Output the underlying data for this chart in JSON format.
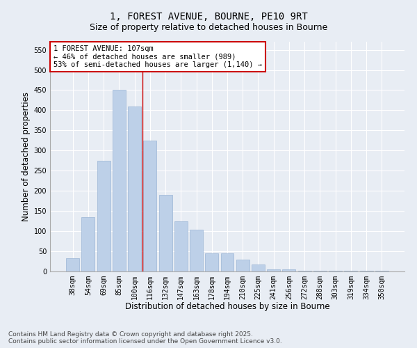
{
  "title": "1, FOREST AVENUE, BOURNE, PE10 9RT",
  "subtitle": "Size of property relative to detached houses in Bourne",
  "xlabel": "Distribution of detached houses by size in Bourne",
  "ylabel": "Number of detached properties",
  "categories": [
    "38sqm",
    "54sqm",
    "69sqm",
    "85sqm",
    "100sqm",
    "116sqm",
    "132sqm",
    "147sqm",
    "163sqm",
    "178sqm",
    "194sqm",
    "210sqm",
    "225sqm",
    "241sqm",
    "256sqm",
    "272sqm",
    "288sqm",
    "303sqm",
    "319sqm",
    "334sqm",
    "350sqm"
  ],
  "values": [
    33,
    135,
    275,
    450,
    410,
    325,
    190,
    125,
    103,
    45,
    45,
    30,
    17,
    6,
    6,
    1,
    2,
    1,
    1,
    2,
    2
  ],
  "bar_color": "#bdd0e8",
  "bar_edge_color": "#9ab5d5",
  "vline_x": 4.5,
  "vline_color": "#cc0000",
  "annotation_text": "1 FOREST AVENUE: 107sqm\n← 46% of detached houses are smaller (989)\n53% of semi-detached houses are larger (1,140) →",
  "annotation_box_color": "#ffffff",
  "annotation_box_edge": "#cc0000",
  "ylim": [
    0,
    570
  ],
  "yticks": [
    0,
    50,
    100,
    150,
    200,
    250,
    300,
    350,
    400,
    450,
    500,
    550
  ],
  "background_color": "#e8edf4",
  "grid_color": "#ffffff",
  "footer_line1": "Contains HM Land Registry data © Crown copyright and database right 2025.",
  "footer_line2": "Contains public sector information licensed under the Open Government Licence v3.0.",
  "title_fontsize": 10,
  "subtitle_fontsize": 9,
  "axis_label_fontsize": 8.5,
  "tick_fontsize": 7,
  "annotation_fontsize": 7.5,
  "footer_fontsize": 6.5
}
